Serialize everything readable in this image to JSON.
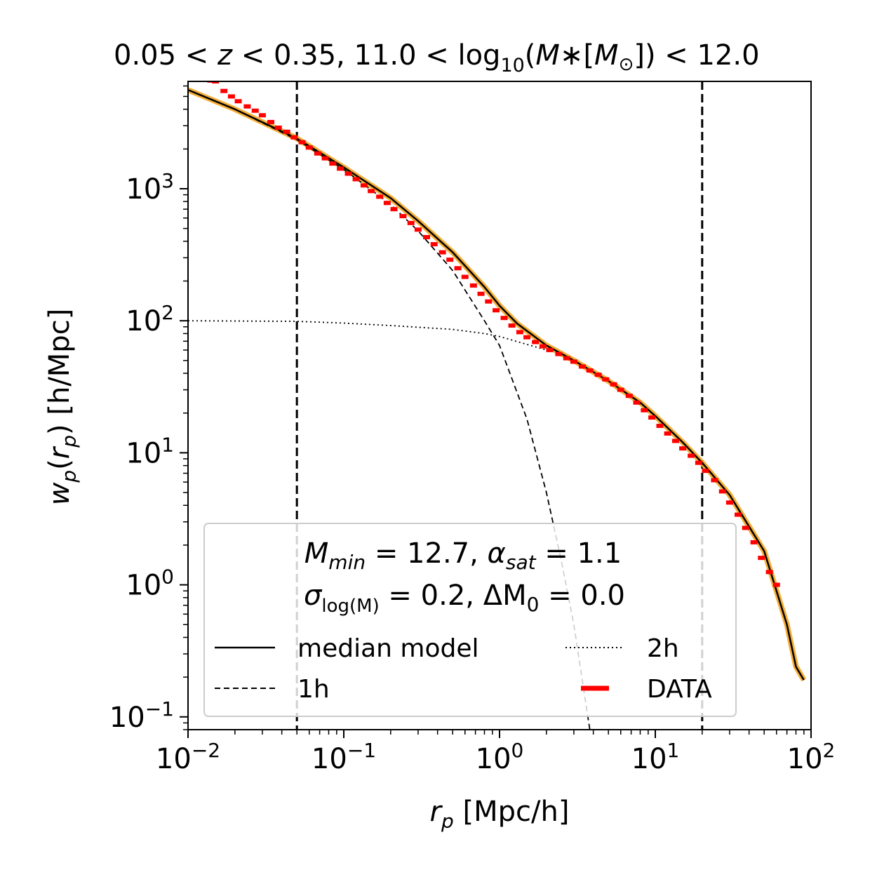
{
  "chart_data": {
    "type": "line",
    "xscale": "log",
    "yscale": "log",
    "title_parts": {
      "lead": "0.05 < ",
      "z": "z",
      "mid": " < 0.35, 11.0 < log",
      "sub10": "10",
      "open": "(",
      "M": "M",
      "star_bracket": "∗[",
      "M2": "M",
      "odot": "⊙",
      "tail": "]) < 12.0"
    },
    "xlabel": {
      "var": "r",
      "sub": "p",
      "unit": " [Mpc/h]"
    },
    "ylabel": {
      "w": "w",
      "wsub": "p",
      "open": "(",
      "r": "r",
      "rsub": "p",
      "close": ") [h/Mpc]"
    },
    "xlim": [
      0.01,
      100
    ],
    "ylim": [
      0.08,
      6500
    ],
    "x_ticks": [
      {
        "value": 0.01,
        "base": "10",
        "exp": "−2"
      },
      {
        "value": 0.1,
        "base": "10",
        "exp": "−1"
      },
      {
        "value": 1,
        "base": "10",
        "exp": "0"
      },
      {
        "value": 10,
        "base": "10",
        "exp": "1"
      },
      {
        "value": 100,
        "base": "10",
        "exp": "2"
      }
    ],
    "y_ticks": [
      {
        "value": 0.1,
        "base": "10",
        "exp": "−1"
      },
      {
        "value": 1,
        "base": "10",
        "exp": "0"
      },
      {
        "value": 10,
        "base": "10",
        "exp": "1"
      },
      {
        "value": 100,
        "base": "10",
        "exp": "2"
      },
      {
        "value": 1000,
        "base": "10",
        "exp": "3"
      }
    ],
    "vlines": [
      0.05,
      20
    ],
    "annotation": {
      "line1": {
        "M": "M",
        "Msub": "min",
        "eq1": " = 12.7, ",
        "alpha": "α",
        "asub": "sat",
        "eq2": " = 1.1"
      },
      "line2": {
        "sigma": "σ",
        "ssub": "log(M)",
        "eq1": " = 0.2, ΔM",
        "m0sub": "0",
        "eq2": " = 0.0"
      }
    },
    "legend": [
      {
        "label": "median model",
        "style": "solid"
      },
      {
        "label": "2h",
        "style": "dotted"
      },
      {
        "label": "1h",
        "style": "dashed"
      },
      {
        "label": "DATA",
        "style": "marker"
      }
    ],
    "series": [
      {
        "name": "median model",
        "style": "solid",
        "color": "#000000",
        "band_color": "#f5a623",
        "points": [
          [
            0.01,
            5600
          ],
          [
            0.02,
            4000
          ],
          [
            0.05,
            2400
          ],
          [
            0.1,
            1450
          ],
          [
            0.2,
            850
          ],
          [
            0.3,
            570
          ],
          [
            0.5,
            330
          ],
          [
            0.8,
            180
          ],
          [
            1.0,
            130
          ],
          [
            1.3,
            95
          ],
          [
            2.0,
            65
          ],
          [
            3.0,
            50
          ],
          [
            5.0,
            35
          ],
          [
            8.0,
            24
          ],
          [
            10,
            19
          ],
          [
            15,
            12
          ],
          [
            20,
            8.4
          ],
          [
            30,
            4.8
          ],
          [
            50,
            1.8
          ],
          [
            70,
            0.5
          ],
          [
            80,
            0.24
          ],
          [
            90,
            0.19
          ]
        ]
      },
      {
        "name": "1h",
        "style": "dashed",
        "color": "#000000",
        "points": [
          [
            0.01,
            5600
          ],
          [
            0.02,
            4000
          ],
          [
            0.05,
            2350
          ],
          [
            0.1,
            1400
          ],
          [
            0.2,
            760
          ],
          [
            0.3,
            480
          ],
          [
            0.5,
            240
          ],
          [
            0.8,
            100
          ],
          [
            1.0,
            65
          ],
          [
            1.5,
            18
          ],
          [
            2.0,
            5
          ],
          [
            2.5,
            1.5
          ],
          [
            3.0,
            0.5
          ],
          [
            3.5,
            0.15
          ],
          [
            3.8,
            0.08
          ]
        ]
      },
      {
        "name": "2h",
        "style": "dotted",
        "color": "#000000",
        "points": [
          [
            0.01,
            100
          ],
          [
            0.05,
            99
          ],
          [
            0.1,
            96
          ],
          [
            0.2,
            92
          ],
          [
            0.5,
            86
          ],
          [
            0.8,
            80
          ],
          [
            1.0,
            76
          ],
          [
            2.0,
            60
          ]
        ]
      },
      {
        "name": "DATA",
        "style": "marker",
        "color": "#ff0000",
        "points": [
          [
            0.012,
            6800
          ],
          [
            0.013,
            6800
          ],
          [
            0.014,
            6600
          ],
          [
            0.015,
            6500
          ],
          [
            0.017,
            5500
          ],
          [
            0.019,
            5000
          ],
          [
            0.021,
            4600
          ],
          [
            0.024,
            4200
          ],
          [
            0.027,
            3900
          ],
          [
            0.03,
            3600
          ],
          [
            0.034,
            3200
          ],
          [
            0.038,
            2900
          ],
          [
            0.043,
            2700
          ],
          [
            0.048,
            2450
          ],
          [
            0.054,
            2250
          ],
          [
            0.06,
            2050
          ],
          [
            0.068,
            1850
          ],
          [
            0.076,
            1700
          ],
          [
            0.085,
            1550
          ],
          [
            0.095,
            1420
          ],
          [
            0.107,
            1300
          ],
          [
            0.12,
            1180
          ],
          [
            0.135,
            1060
          ],
          [
            0.15,
            960
          ],
          [
            0.17,
            870
          ],
          [
            0.19,
            780
          ],
          [
            0.21,
            700
          ],
          [
            0.24,
            620
          ],
          [
            0.27,
            550
          ],
          [
            0.3,
            490
          ],
          [
            0.34,
            430
          ],
          [
            0.38,
            380
          ],
          [
            0.43,
            330
          ],
          [
            0.48,
            290
          ],
          [
            0.54,
            250
          ],
          [
            0.6,
            215
          ],
          [
            0.68,
            185
          ],
          [
            0.76,
            160
          ],
          [
            0.85,
            140
          ],
          [
            0.95,
            120
          ],
          [
            1.07,
            105
          ],
          [
            1.2,
            92
          ],
          [
            1.35,
            82
          ],
          [
            1.5,
            75
          ],
          [
            1.7,
            69
          ],
          [
            1.9,
            64
          ],
          [
            2.1,
            60
          ],
          [
            2.4,
            56
          ],
          [
            2.7,
            52
          ],
          [
            3.0,
            49
          ],
          [
            3.4,
            45
          ],
          [
            3.8,
            42
          ],
          [
            4.3,
            39
          ],
          [
            4.8,
            36
          ],
          [
            5.4,
            33
          ],
          [
            6.0,
            30
          ],
          [
            6.8,
            27
          ],
          [
            7.6,
            24
          ],
          [
            8.5,
            21
          ],
          [
            9.5,
            18.5
          ],
          [
            10.7,
            16
          ],
          [
            12,
            14
          ],
          [
            13.5,
            12.3
          ],
          [
            15,
            10.8
          ],
          [
            17,
            9.5
          ],
          [
            19,
            8.4
          ],
          [
            21,
            7.3
          ],
          [
            24,
            6.2
          ],
          [
            27,
            5.1
          ],
          [
            30,
            4.2
          ],
          [
            34,
            3.4
          ],
          [
            38,
            2.7
          ],
          [
            43,
            2.1
          ],
          [
            48,
            1.6
          ],
          [
            54,
            1.25
          ],
          [
            60,
            1.0
          ]
        ]
      }
    ]
  }
}
